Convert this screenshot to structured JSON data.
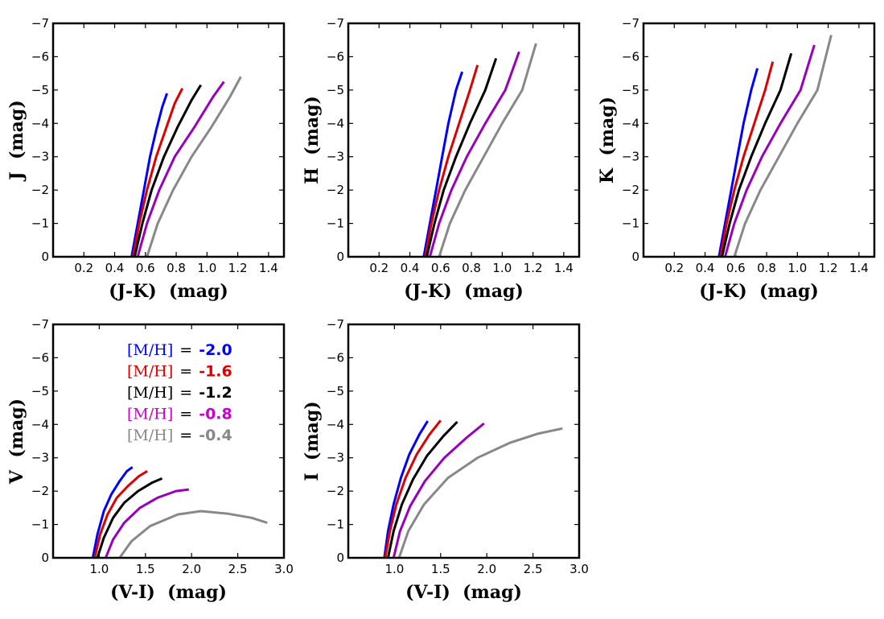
{
  "chart_data": [
    {
      "type": "line",
      "panel": "J vs (J-K)",
      "xlabel": "(J-K)  (mag)",
      "ylabel": "J  (mag)",
      "xlim": [
        0.0,
        1.5
      ],
      "ylim": [
        0,
        -7
      ],
      "xticks": [
        "0.2",
        "0.4",
        "0.6",
        "0.8",
        "1.0",
        "1.2",
        "1.4"
      ],
      "yticks": [
        "0",
        "−1",
        "−2",
        "−3",
        "−4",
        "−5",
        "−6",
        "−7"
      ],
      "series": [
        {
          "name": "[M/H] = -2.0",
          "color": "#0000ff",
          "x": [
            0.51,
            0.55,
            0.59,
            0.63,
            0.67,
            0.71,
            0.74
          ],
          "y": [
            0,
            -1,
            -2,
            -3,
            -3.8,
            -4.5,
            -4.9
          ]
        },
        {
          "name": "[M/H] = -1.6",
          "color": "#dd0000",
          "x": [
            0.52,
            0.56,
            0.61,
            0.67,
            0.73,
            0.79,
            0.84
          ],
          "y": [
            0,
            -1,
            -2,
            -3,
            -3.8,
            -4.6,
            -5.05
          ]
        },
        {
          "name": "[M/H] = -1.2",
          "color": "#000000",
          "x": [
            0.53,
            0.58,
            0.64,
            0.72,
            0.81,
            0.9,
            0.96
          ],
          "y": [
            0,
            -1,
            -2,
            -3,
            -3.9,
            -4.7,
            -5.15
          ]
        },
        {
          "name": "[M/H] = -0.8",
          "color": "#9900bb",
          "x": [
            0.55,
            0.61,
            0.69,
            0.79,
            0.92,
            1.04,
            1.11
          ],
          "y": [
            0,
            -1,
            -2,
            -3,
            -3.9,
            -4.8,
            -5.25
          ]
        },
        {
          "name": "[M/H] = -0.4",
          "color": "#888888",
          "x": [
            0.61,
            0.68,
            0.78,
            0.9,
            1.03,
            1.15,
            1.22
          ],
          "y": [
            0,
            -1,
            -2,
            -3,
            -3.9,
            -4.8,
            -5.4
          ]
        }
      ]
    },
    {
      "type": "line",
      "panel": "H vs (J-K)",
      "xlabel": "(J-K)  (mag)",
      "ylabel": "H  (mag)",
      "xlim": [
        0.0,
        1.5
      ],
      "ylim": [
        0,
        -7
      ],
      "xticks": [
        "0.2",
        "0.4",
        "0.6",
        "0.8",
        "1.0",
        "1.2",
        "1.4"
      ],
      "yticks": [
        "0",
        "−1",
        "−2",
        "−3",
        "−4",
        "−5",
        "−6",
        "−7"
      ],
      "series": [
        {
          "name": "[M/H] = -2.0",
          "color": "#0000ff",
          "x": [
            0.49,
            0.53,
            0.57,
            0.61,
            0.65,
            0.7,
            0.74
          ],
          "y": [
            0,
            -1,
            -2,
            -3,
            -4,
            -5,
            -5.55
          ]
        },
        {
          "name": "[M/H] = -1.6",
          "color": "#dd0000",
          "x": [
            0.5,
            0.54,
            0.59,
            0.65,
            0.72,
            0.79,
            0.84
          ],
          "y": [
            0,
            -1,
            -2,
            -3,
            -4,
            -5,
            -5.75
          ]
        },
        {
          "name": "[M/H] = -1.2",
          "color": "#000000",
          "x": [
            0.51,
            0.56,
            0.62,
            0.7,
            0.79,
            0.89,
            0.96
          ],
          "y": [
            0,
            -1,
            -2,
            -3,
            -4,
            -5,
            -5.95
          ]
        },
        {
          "name": "[M/H] = -0.8",
          "color": "#9900bb",
          "x": [
            0.53,
            0.59,
            0.67,
            0.77,
            0.89,
            1.02,
            1.11
          ],
          "y": [
            0,
            -1,
            -2,
            -3,
            -4,
            -5,
            -6.15
          ]
        },
        {
          "name": "[M/H] = -0.4",
          "color": "#888888",
          "x": [
            0.59,
            0.66,
            0.76,
            0.88,
            1.0,
            1.13,
            1.22
          ],
          "y": [
            0,
            -1,
            -2,
            -3,
            -4,
            -5,
            -6.4
          ]
        }
      ]
    },
    {
      "type": "line",
      "panel": "K vs (J-K)",
      "xlabel": "(J-K)  (mag)",
      "ylabel": "K  (mag)",
      "xlim": [
        0.0,
        1.5
      ],
      "ylim": [
        0,
        -7
      ],
      "xticks": [
        "0.2",
        "0.4",
        "0.6",
        "0.8",
        "1.0",
        "1.2",
        "1.4"
      ],
      "yticks": [
        "0",
        "−1",
        "−2",
        "−3",
        "−4",
        "−5",
        "−6",
        "−7"
      ],
      "series": [
        {
          "name": "[M/H] = -2.0",
          "color": "#0000ff",
          "x": [
            0.49,
            0.53,
            0.57,
            0.61,
            0.65,
            0.7,
            0.74
          ],
          "y": [
            0,
            -1,
            -2,
            -3,
            -4,
            -5,
            -5.65
          ]
        },
        {
          "name": "[M/H] = -1.6",
          "color": "#dd0000",
          "x": [
            0.5,
            0.54,
            0.59,
            0.65,
            0.72,
            0.79,
            0.84
          ],
          "y": [
            0,
            -1,
            -2,
            -3,
            -4,
            -5,
            -5.85
          ]
        },
        {
          "name": "[M/H] = -1.2",
          "color": "#000000",
          "x": [
            0.51,
            0.56,
            0.62,
            0.7,
            0.79,
            0.89,
            0.96
          ],
          "y": [
            0,
            -1,
            -2,
            -3,
            -4,
            -5,
            -6.1
          ]
        },
        {
          "name": "[M/H] = -0.8",
          "color": "#9900bb",
          "x": [
            0.53,
            0.59,
            0.67,
            0.77,
            0.89,
            1.02,
            1.11
          ],
          "y": [
            0,
            -1,
            -2,
            -3,
            -4,
            -5,
            -6.35
          ]
        },
        {
          "name": "[M/H] = -0.4",
          "color": "#888888",
          "x": [
            0.59,
            0.66,
            0.76,
            0.88,
            1.0,
            1.13,
            1.22
          ],
          "y": [
            0,
            -1,
            -2,
            -3,
            -4,
            -5,
            -6.65
          ]
        }
      ]
    },
    {
      "type": "line",
      "panel": "V vs (V-I)",
      "xlabel": "(V-I)  (mag)",
      "ylabel": "V  (mag)",
      "xlim": [
        0.5,
        3.0
      ],
      "ylim": [
        0,
        -7
      ],
      "xticks": [
        "1.0",
        "1.5",
        "2.0",
        "2.5",
        "3.0"
      ],
      "yticks": [
        "0",
        "−1",
        "−2",
        "−3",
        "−4",
        "−5",
        "−6",
        "−7"
      ],
      "legend": {
        "placement": "upper-center",
        "entries": [
          {
            "label": "[M/H]",
            "eq": "=",
            "value": "-2.0",
            "color": "#0000ff"
          },
          {
            "label": "[M/H]",
            "eq": "=",
            "value": "-1.6",
            "color": "#dd0000"
          },
          {
            "label": "[M/H]",
            "eq": "=",
            "value": "-1.2",
            "color": "#000000"
          },
          {
            "label": "[M/H]",
            "eq": "=",
            "value": "-0.8",
            "color": "#cc00cc"
          },
          {
            "label": "[M/H]",
            "eq": "=",
            "value": "-0.4",
            "color": "#888888"
          }
        ]
      },
      "series": [
        {
          "name": "[M/H] = -2.0",
          "color": "#0000ff",
          "x": [
            0.93,
            0.98,
            1.05,
            1.13,
            1.22,
            1.3,
            1.36
          ],
          "y": [
            0,
            -0.7,
            -1.4,
            -1.9,
            -2.3,
            -2.6,
            -2.72
          ]
        },
        {
          "name": "[M/H] = -1.6",
          "color": "#dd0000",
          "x": [
            0.95,
            1.01,
            1.09,
            1.19,
            1.31,
            1.43,
            1.52
          ],
          "y": [
            0,
            -0.7,
            -1.3,
            -1.8,
            -2.15,
            -2.45,
            -2.6
          ]
        },
        {
          "name": "[M/H] = -1.2",
          "color": "#000000",
          "x": [
            0.98,
            1.05,
            1.15,
            1.27,
            1.42,
            1.57,
            1.68
          ],
          "y": [
            0,
            -0.6,
            -1.2,
            -1.65,
            -2.0,
            -2.25,
            -2.38
          ]
        },
        {
          "name": "[M/H] = -0.8",
          "color": "#9900bb",
          "x": [
            1.07,
            1.15,
            1.27,
            1.44,
            1.63,
            1.83,
            1.97
          ],
          "y": [
            0,
            -0.55,
            -1.05,
            -1.5,
            -1.8,
            -2.0,
            -2.05
          ]
        },
        {
          "name": "[M/H] = -0.4",
          "color": "#888888",
          "x": [
            1.22,
            1.35,
            1.55,
            1.85,
            2.1,
            2.4,
            2.65,
            2.82
          ],
          "y": [
            0,
            -0.5,
            -0.95,
            -1.3,
            -1.4,
            -1.32,
            -1.2,
            -1.05
          ]
        }
      ]
    },
    {
      "type": "line",
      "panel": "I vs (V-I)",
      "xlabel": "(V-I)  (mag)",
      "ylabel": "I  (mag)",
      "xlim": [
        0.5,
        3.0
      ],
      "ylim": [
        0,
        -7
      ],
      "xticks": [
        "1.0",
        "1.5",
        "2.0",
        "2.5",
        "3.0"
      ],
      "yticks": [
        "0",
        "−1",
        "−2",
        "−3",
        "−4",
        "−5",
        "−6",
        "−7"
      ],
      "series": [
        {
          "name": "[M/H] = -2.0",
          "color": "#0000ff",
          "x": [
            0.89,
            0.93,
            0.99,
            1.07,
            1.16,
            1.27,
            1.36
          ],
          "y": [
            0,
            -0.8,
            -1.6,
            -2.4,
            -3.1,
            -3.7,
            -4.1
          ]
        },
        {
          "name": "[M/H] = -1.6",
          "color": "#dd0000",
          "x": [
            0.9,
            0.95,
            1.02,
            1.12,
            1.24,
            1.38,
            1.5
          ],
          "y": [
            0,
            -0.8,
            -1.6,
            -2.4,
            -3.1,
            -3.7,
            -4.12
          ]
        },
        {
          "name": "[M/H] = -1.2",
          "color": "#000000",
          "x": [
            0.93,
            0.99,
            1.08,
            1.2,
            1.35,
            1.53,
            1.68
          ],
          "y": [
            0,
            -0.8,
            -1.6,
            -2.35,
            -3.05,
            -3.65,
            -4.08
          ]
        },
        {
          "name": "[M/H] = -0.8",
          "color": "#9900bb",
          "x": [
            0.99,
            1.06,
            1.17,
            1.33,
            1.54,
            1.78,
            1.97
          ],
          "y": [
            0,
            -0.8,
            -1.55,
            -2.3,
            -3.0,
            -3.6,
            -4.03
          ]
        },
        {
          "name": "[M/H] = -0.4",
          "color": "#888888",
          "x": [
            1.05,
            1.15,
            1.32,
            1.58,
            1.9,
            2.25,
            2.55,
            2.82
          ],
          "y": [
            0,
            -0.8,
            -1.6,
            -2.4,
            -3.0,
            -3.45,
            -3.72,
            -3.88
          ]
        }
      ]
    }
  ]
}
